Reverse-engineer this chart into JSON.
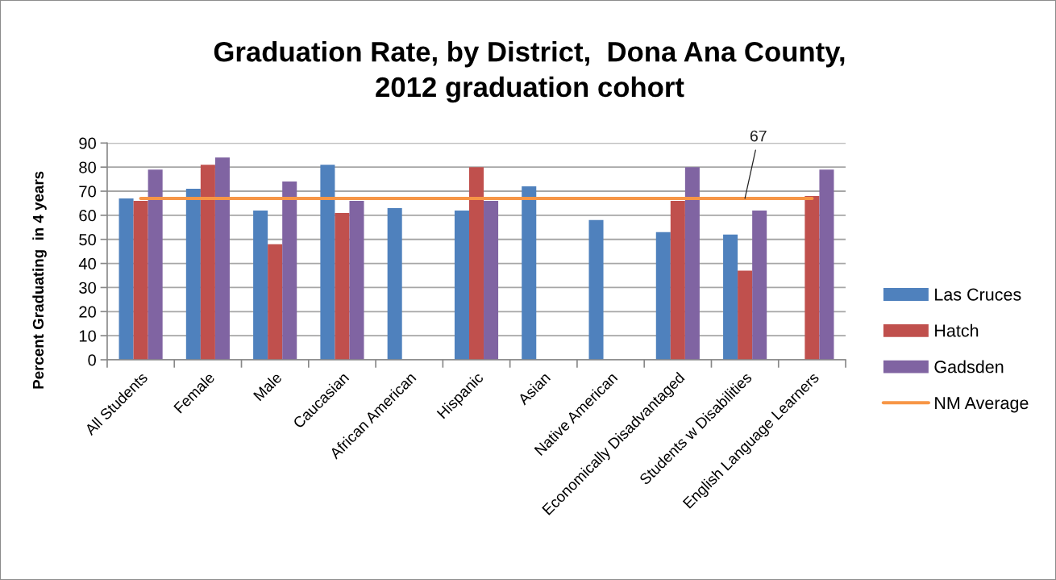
{
  "chart_data": {
    "type": "bar",
    "title": "Graduation Rate, by District,  Dona Ana County,\n2012 graduation cohort",
    "ylabel": "Percent Graduating  in 4 years",
    "categories": [
      "All Students",
      "Female",
      "Male",
      "Caucasian",
      "African American",
      "Hispanic",
      "Asian",
      "Native American",
      "Economically Disadvantaged",
      "Students w Disabilities",
      "English Language Learners"
    ],
    "series": [
      {
        "name": "Las Cruces",
        "color": "#4f81bd",
        "values": [
          67,
          71,
          62,
          81,
          63,
          62,
          72,
          58,
          53,
          52,
          null
        ]
      },
      {
        "name": "Hatch",
        "color": "#c0504d",
        "values": [
          66,
          81,
          48,
          61,
          null,
          80,
          null,
          null,
          66,
          37,
          68
        ]
      },
      {
        "name": "Gadsden",
        "color": "#8064a2",
        "values": [
          79,
          84,
          74,
          66,
          null,
          66,
          null,
          null,
          80,
          62,
          79
        ]
      },
      {
        "name": "NM Average",
        "type": "line",
        "color": "#f79646",
        "values": [
          67,
          67,
          67,
          67,
          67,
          67,
          67,
          67,
          67,
          67,
          67
        ],
        "value_labels": [
          null,
          null,
          null,
          null,
          null,
          null,
          null,
          null,
          null,
          "67",
          null
        ]
      }
    ],
    "ylim": [
      0,
      90
    ],
    "yticks": [
      0,
      10,
      20,
      30,
      40,
      50,
      60,
      70,
      80,
      90
    ],
    "grid": "y",
    "legend": "right"
  }
}
